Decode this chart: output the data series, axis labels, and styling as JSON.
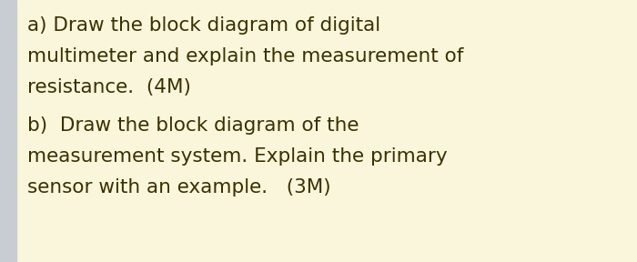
{
  "background_color": "#faf6dc",
  "left_border_color": "#c8cdd4",
  "text_color": "#3a3000",
  "line1": "a) Draw the block diagram of digital",
  "line2": "multimeter and explain the measurement of",
  "line3": "resistance.  (4M)",
  "line4": "b)  Draw the block diagram of the",
  "line5": "measurement system. Explain the primary",
  "line6": "sensor with an example.   (3M)",
  "font_size": 15.5,
  "font_weight": "normal"
}
